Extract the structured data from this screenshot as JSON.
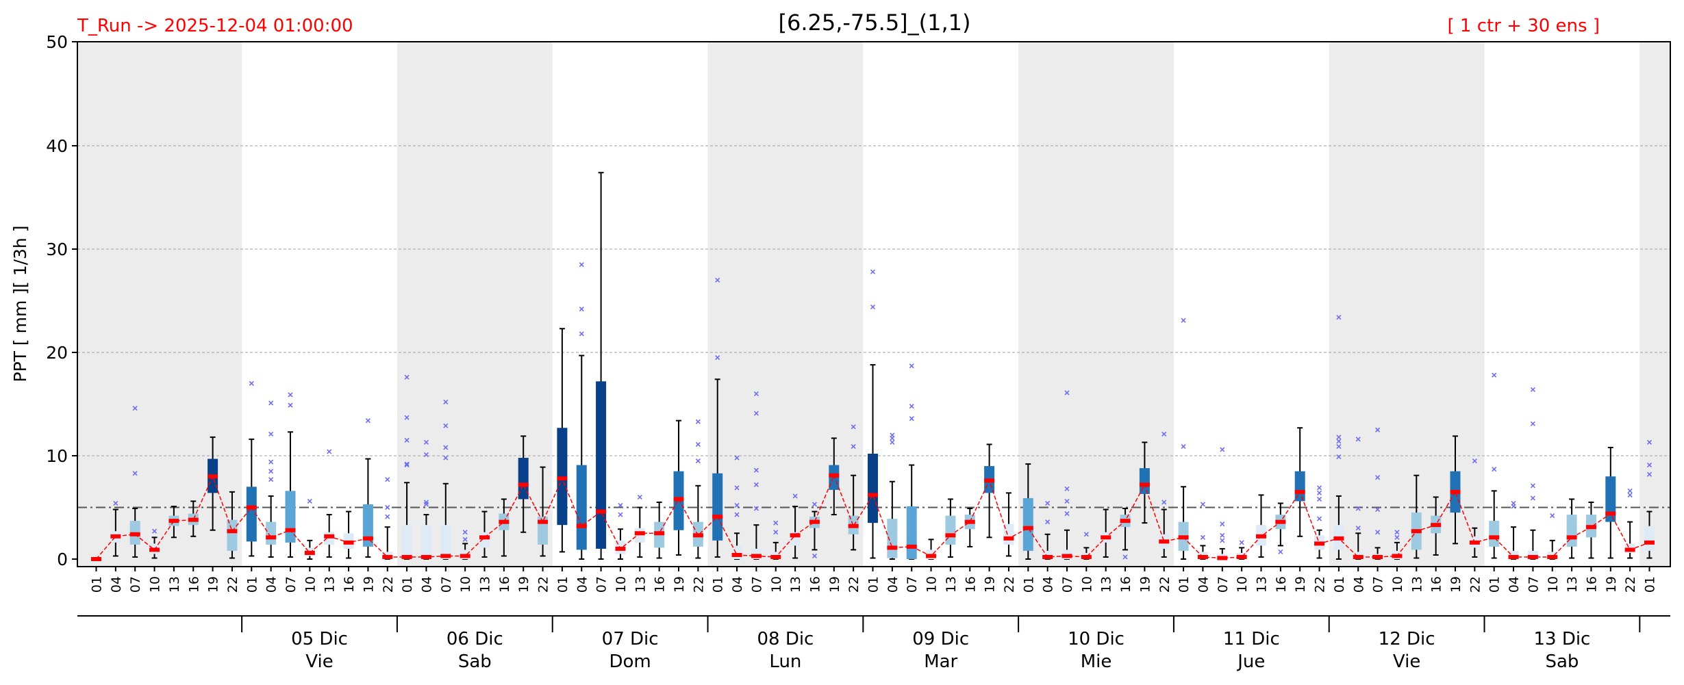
{
  "chart_data": {
    "type": "box",
    "title": "[6.25,-75.5]_(1,1)",
    "run_label": "T_Run -> 2025-12-04  01:00:00",
    "ensemble_label": "[ 1 ctr + 30 ens ]",
    "ylabel": "PPT  [ mm ][ 1/3h ]",
    "ylim": [
      0,
      50
    ],
    "yticks": [
      0,
      10,
      20,
      30,
      40,
      50
    ],
    "threshold": 5,
    "grid": true,
    "hours": [
      "01",
      "04",
      "07",
      "10",
      "13",
      "16",
      "19",
      "22"
    ],
    "day_groups": [
      {
        "date": "",
        "weekday": "",
        "shaded": true
      },
      {
        "date": "05 Dic",
        "weekday": "Vie",
        "shaded": false
      },
      {
        "date": "06 Dic",
        "weekday": "Sab",
        "shaded": true
      },
      {
        "date": "07 Dic",
        "weekday": "Dom",
        "shaded": false
      },
      {
        "date": "08 Dic",
        "weekday": "Lun",
        "shaded": true
      },
      {
        "date": "09 Dic",
        "weekday": "Mar",
        "shaded": false
      },
      {
        "date": "10 Dic",
        "weekday": "Mie",
        "shaded": true
      },
      {
        "date": "11 Dic",
        "weekday": "Jue",
        "shaded": false
      },
      {
        "date": "12 Dic",
        "weekday": "Vie",
        "shaded": true
      },
      {
        "date": "13 Dic",
        "weekday": "Sab",
        "shaded": false
      },
      {
        "date": "",
        "weekday": "",
        "shaded": true
      }
    ],
    "colors": {
      "shade": "#ececec",
      "median": "#ff0000",
      "median_line": "#ff0000",
      "whisker": "#000000",
      "outlier": "#6e6ef0",
      "threshold": "#555555",
      "grid": "#b0b0b0",
      "box_levels": [
        "#deebf7",
        "#9ecae1",
        "#5aa5d6",
        "#2171b5",
        "#08408a"
      ]
    },
    "boxes": [
      {
        "t": "01",
        "q1": 0,
        "med": 0,
        "q3": 0,
        "lo": 0,
        "hi": 0,
        "out": []
      },
      {
        "t": "04",
        "q1": 1.6,
        "med": 2.2,
        "q3": 2.7,
        "lo": 0.3,
        "hi": 4.8,
        "out": [
          5.4
        ]
      },
      {
        "t": "07",
        "q1": 1.4,
        "med": 2.4,
        "q3": 3.7,
        "lo": 0.2,
        "hi": 4.9,
        "out": [
          8.3,
          14.6
        ]
      },
      {
        "t": "10",
        "q1": 0.5,
        "med": 0.9,
        "q3": 1.5,
        "lo": 0.1,
        "hi": 2.1,
        "out": [
          2.7
        ]
      },
      {
        "t": "13",
        "q1": 3.2,
        "med": 3.7,
        "q3": 4.2,
        "lo": 2.1,
        "hi": 5.1,
        "out": []
      },
      {
        "t": "16",
        "q1": 3.3,
        "med": 3.8,
        "q3": 4.4,
        "lo": 2.2,
        "hi": 5.6,
        "out": []
      },
      {
        "t": "19",
        "q1": 6.4,
        "med": 8,
        "q3": 9.7,
        "lo": 2.8,
        "hi": 11.8,
        "out": []
      },
      {
        "t": "22",
        "q1": 0.8,
        "med": 2.7,
        "q3": 3.8,
        "lo": 0.1,
        "hi": 6.5,
        "out": []
      },
      {
        "t": "01",
        "q1": 1.7,
        "med": 5,
        "q3": 7,
        "lo": 0.3,
        "hi": 11.6,
        "out": [
          17
        ]
      },
      {
        "t": "04",
        "q1": 1.4,
        "med": 2.1,
        "q3": 3.6,
        "lo": 0.2,
        "hi": 6.1,
        "out": [
          7.7,
          8.5,
          9.4,
          12.1,
          15.1
        ]
      },
      {
        "t": "07",
        "q1": 1.6,
        "med": 2.8,
        "q3": 6.6,
        "lo": 0.2,
        "hi": 12.3,
        "out": [
          14.9,
          15.9
        ]
      },
      {
        "t": "10",
        "q1": 0.3,
        "med": 0.6,
        "q3": 1.1,
        "lo": 0,
        "hi": 1.8,
        "out": [
          5.6
        ]
      },
      {
        "t": "13",
        "q1": 1.4,
        "med": 2.2,
        "q3": 2.6,
        "lo": 0.2,
        "hi": 4.3,
        "out": [
          10.4
        ]
      },
      {
        "t": "16",
        "q1": 1,
        "med": 1.6,
        "q3": 2.5,
        "lo": 0.1,
        "hi": 4.6,
        "out": []
      },
      {
        "t": "19",
        "q1": 1.2,
        "med": 2,
        "q3": 5.3,
        "lo": 0.2,
        "hi": 9.7,
        "out": [
          13.4
        ]
      },
      {
        "t": "22",
        "q1": 0,
        "med": 0.2,
        "q3": 0.7,
        "lo": 0,
        "hi": 3.1,
        "out": [
          4.1,
          5,
          7.7
        ]
      },
      {
        "t": "01",
        "q1": 0,
        "med": 0.2,
        "q3": 3.3,
        "lo": 0,
        "hi": 7.4,
        "out": [
          9.1,
          9.2,
          11.5,
          13.7,
          17.6
        ]
      },
      {
        "t": "04",
        "q1": 0,
        "med": 0.2,
        "q3": 3.3,
        "lo": 0,
        "hi": 4.3,
        "out": [
          5.3,
          5.5,
          10.1,
          11.3
        ]
      },
      {
        "t": "07",
        "q1": 0,
        "med": 0.3,
        "q3": 3.3,
        "lo": 0,
        "hi": 7.3,
        "out": [
          9.8,
          10.8,
          12.9,
          15.2
        ]
      },
      {
        "t": "10",
        "q1": 0,
        "med": 0.3,
        "q3": 0.9,
        "lo": 0,
        "hi": 1.5,
        "out": [
          1.9,
          2.6
        ]
      },
      {
        "t": "13",
        "q1": 1.1,
        "med": 2.1,
        "q3": 2.6,
        "lo": 0.2,
        "hi": 4.6,
        "out": []
      },
      {
        "t": "16",
        "q1": 2.8,
        "med": 3.6,
        "q3": 4.4,
        "lo": 0.3,
        "hi": 5.8,
        "out": []
      },
      {
        "t": "19",
        "q1": 5.8,
        "med": 7.2,
        "q3": 9.8,
        "lo": 2.6,
        "hi": 11.9,
        "out": []
      },
      {
        "t": "22",
        "q1": 1.4,
        "med": 3.6,
        "q3": 4.1,
        "lo": 0.3,
        "hi": 8.9,
        "out": []
      },
      {
        "t": "01",
        "q1": 3.3,
        "med": 7.8,
        "q3": 12.7,
        "lo": 0.7,
        "hi": 22.3,
        "out": []
      },
      {
        "t": "04",
        "q1": 0.9,
        "med": 3.2,
        "q3": 9.1,
        "lo": 0,
        "hi": 19.7,
        "out": [
          21.8,
          24.2,
          28.5
        ]
      },
      {
        "t": "07",
        "q1": 1,
        "med": 4.6,
        "q3": 17.2,
        "lo": 0,
        "hi": 37.4,
        "out": []
      },
      {
        "t": "10",
        "q1": 0.5,
        "med": 1,
        "q3": 1.8,
        "lo": 0,
        "hi": 2.9,
        "out": [
          4.3,
          5.2
        ]
      },
      {
        "t": "13",
        "q1": 1.6,
        "med": 2.5,
        "q3": 3,
        "lo": 0.2,
        "hi": 5,
        "out": [
          6
        ]
      },
      {
        "t": "16",
        "q1": 1.1,
        "med": 2.5,
        "q3": 3.6,
        "lo": 0.1,
        "hi": 5.5,
        "out": []
      },
      {
        "t": "19",
        "q1": 2.8,
        "med": 5.8,
        "q3": 8.5,
        "lo": 0.4,
        "hi": 13.4,
        "out": []
      },
      {
        "t": "22",
        "q1": 1.2,
        "med": 2.3,
        "q3": 3.6,
        "lo": 0.1,
        "hi": 7.1,
        "out": [
          9.5,
          11.1,
          13.3
        ]
      },
      {
        "t": "01",
        "q1": 1.8,
        "med": 4.1,
        "q3": 8.3,
        "lo": 0.2,
        "hi": 17.4,
        "out": [
          19.5,
          27
        ]
      },
      {
        "t": "04",
        "q1": 0,
        "med": 0.4,
        "q3": 1.3,
        "lo": 0,
        "hi": 2.5,
        "out": [
          4.3,
          5.2,
          6.9,
          9.8
        ]
      },
      {
        "t": "07",
        "q1": 0,
        "med": 0.3,
        "q3": 1,
        "lo": 0,
        "hi": 3.3,
        "out": [
          4.9,
          7.2,
          8.6,
          14.1,
          16
        ]
      },
      {
        "t": "10",
        "q1": 0,
        "med": 0.2,
        "q3": 0.7,
        "lo": 0,
        "hi": 1.6,
        "out": [
          2.6,
          3.5
        ]
      },
      {
        "t": "13",
        "q1": 1.3,
        "med": 2.3,
        "q3": 2.6,
        "lo": 0.1,
        "hi": 5.1,
        "out": [
          6.1
        ]
      },
      {
        "t": "16",
        "q1": 3,
        "med": 3.6,
        "q3": 4.1,
        "lo": 0.9,
        "hi": 4.6,
        "out": [
          0.3,
          5.3
        ]
      },
      {
        "t": "19",
        "q1": 6.7,
        "med": 8.1,
        "q3": 9.1,
        "lo": 4.3,
        "hi": 11.7,
        "out": []
      },
      {
        "t": "22",
        "q1": 2.4,
        "med": 3.2,
        "q3": 4.2,
        "lo": 0.9,
        "hi": 8.1,
        "out": [
          10.9,
          12.8
        ]
      },
      {
        "t": "01",
        "q1": 3.5,
        "med": 6.2,
        "q3": 10.2,
        "lo": 0.1,
        "hi": 18.8,
        "out": [
          24.4,
          27.8
        ]
      },
      {
        "t": "04",
        "q1": 0.1,
        "med": 1.1,
        "q3": 3.9,
        "lo": 0,
        "hi": 7.5,
        "out": [
          11.3,
          11.7,
          12
        ]
      },
      {
        "t": "07",
        "q1": 0,
        "med": 1.2,
        "q3": 5.1,
        "lo": 0,
        "hi": 9.1,
        "out": [
          13.6,
          14.8,
          18.7
        ]
      },
      {
        "t": "10",
        "q1": 0,
        "med": 0.3,
        "q3": 0.9,
        "lo": 0,
        "hi": 1.9,
        "out": []
      },
      {
        "t": "13",
        "q1": 1.4,
        "med": 2.3,
        "q3": 4.2,
        "lo": 0.2,
        "hi": 5.8,
        "out": []
      },
      {
        "t": "16",
        "q1": 2.9,
        "med": 3.6,
        "q3": 4.3,
        "lo": 1.2,
        "hi": 4.9,
        "out": []
      },
      {
        "t": "19",
        "q1": 6.4,
        "med": 7.6,
        "q3": 9,
        "lo": 2.1,
        "hi": 11.1,
        "out": []
      },
      {
        "t": "22",
        "q1": 1.4,
        "med": 2,
        "q3": 3.4,
        "lo": 0.3,
        "hi": 6.4,
        "out": []
      },
      {
        "t": "01",
        "q1": 0.8,
        "med": 3,
        "q3": 5.9,
        "lo": 0,
        "hi": 9.2,
        "out": []
      },
      {
        "t": "04",
        "q1": 0,
        "med": 0.2,
        "q3": 0.8,
        "lo": 0,
        "hi": 2.4,
        "out": [
          3.6,
          5.4
        ]
      },
      {
        "t": "07",
        "q1": 0,
        "med": 0.3,
        "q3": 0.9,
        "lo": 0,
        "hi": 2.8,
        "out": [
          4.4,
          5.6,
          6.8,
          16.1
        ]
      },
      {
        "t": "10",
        "q1": 0,
        "med": 0.2,
        "q3": 0.6,
        "lo": 0,
        "hi": 1.1,
        "out": [
          2.4
        ]
      },
      {
        "t": "13",
        "q1": 1.6,
        "med": 2.1,
        "q3": 2.6,
        "lo": 0.2,
        "hi": 4.8,
        "out": []
      },
      {
        "t": "16",
        "q1": 3.1,
        "med": 3.7,
        "q3": 4.3,
        "lo": 0.9,
        "hi": 4.9,
        "out": [
          0.2
        ]
      },
      {
        "t": "19",
        "q1": 6.3,
        "med": 7.2,
        "q3": 8.8,
        "lo": 3.5,
        "hi": 11.3,
        "out": []
      },
      {
        "t": "22",
        "q1": 1,
        "med": 1.7,
        "q3": 2.4,
        "lo": 0.2,
        "hi": 4.8,
        "out": [
          5.5,
          12.1
        ]
      },
      {
        "t": "01",
        "q1": 0.8,
        "med": 2.1,
        "q3": 3.6,
        "lo": 0,
        "hi": 7,
        "out": [
          10.9,
          23.1
        ]
      },
      {
        "t": "04",
        "q1": 0,
        "med": 0.2,
        "q3": 0.7,
        "lo": 0,
        "hi": 1.3,
        "out": [
          2.1,
          5.3
        ]
      },
      {
        "t": "07",
        "q1": 0,
        "med": 0.1,
        "q3": 0.5,
        "lo": 0,
        "hi": 1,
        "out": [
          1.8,
          2.3,
          3.4,
          10.6
        ]
      },
      {
        "t": "10",
        "q1": 0,
        "med": 0.2,
        "q3": 0.6,
        "lo": 0,
        "hi": 1.1,
        "out": [
          1.6
        ]
      },
      {
        "t": "13",
        "q1": 1.3,
        "med": 2.2,
        "q3": 3.3,
        "lo": 0.2,
        "hi": 6.2,
        "out": []
      },
      {
        "t": "16",
        "q1": 2.9,
        "med": 3.6,
        "q3": 4.3,
        "lo": 1.3,
        "hi": 5.4,
        "out": [
          0.7
        ]
      },
      {
        "t": "19",
        "q1": 5.6,
        "med": 6.5,
        "q3": 8.5,
        "lo": 2.2,
        "hi": 12.7,
        "out": []
      },
      {
        "t": "22",
        "q1": 0.9,
        "med": 1.5,
        "q3": 2.3,
        "lo": 0.1,
        "hi": 2.8,
        "out": [
          3.9,
          5.8,
          6.4,
          6.9
        ]
      },
      {
        "t": "01",
        "q1": 0.9,
        "med": 2,
        "q3": 3.3,
        "lo": 0,
        "hi": 6.1,
        "out": [
          9.9,
          10.9,
          11.4,
          11.8,
          23.4
        ]
      },
      {
        "t": "04",
        "q1": 0,
        "med": 0.2,
        "q3": 0.7,
        "lo": 0,
        "hi": 2.5,
        "out": [
          3,
          4.9,
          11.6
        ]
      },
      {
        "t": "07",
        "q1": 0,
        "med": 0.2,
        "q3": 0.5,
        "lo": 0,
        "hi": 1.1,
        "out": [
          2.6,
          4.8,
          7.9,
          12.5
        ]
      },
      {
        "t": "10",
        "q1": 0,
        "med": 0.3,
        "q3": 0.8,
        "lo": 0,
        "hi": 1.6,
        "out": [
          2.1,
          2.6
        ]
      },
      {
        "t": "13",
        "q1": 0.9,
        "med": 2.7,
        "q3": 4.5,
        "lo": 0.1,
        "hi": 8.1,
        "out": []
      },
      {
        "t": "16",
        "q1": 2.5,
        "med": 3.3,
        "q3": 4.2,
        "lo": 0.4,
        "hi": 6,
        "out": []
      },
      {
        "t": "19",
        "q1": 4.5,
        "med": 6.5,
        "q3": 8.5,
        "lo": 1.5,
        "hi": 11.9,
        "out": []
      },
      {
        "t": "22",
        "q1": 1.1,
        "med": 1.6,
        "q3": 2.2,
        "lo": 0.2,
        "hi": 3,
        "out": [
          9.5
        ]
      },
      {
        "t": "01",
        "q1": 1.2,
        "med": 2.1,
        "q3": 3.7,
        "lo": 0.1,
        "hi": 6.6,
        "out": [
          8.7,
          17.8
        ]
      },
      {
        "t": "04",
        "q1": 0,
        "med": 0.2,
        "q3": 0.8,
        "lo": 0,
        "hi": 3.1,
        "out": [
          5.1,
          5.4
        ]
      },
      {
        "t": "07",
        "q1": 0,
        "med": 0.2,
        "q3": 0.8,
        "lo": 0,
        "hi": 2.8,
        "out": [
          5.9,
          7.1,
          13.1,
          16.4
        ]
      },
      {
        "t": "10",
        "q1": 0,
        "med": 0.2,
        "q3": 0.7,
        "lo": 0,
        "hi": 1.8,
        "out": [
          4.2
        ]
      },
      {
        "t": "13",
        "q1": 1.2,
        "med": 2.1,
        "q3": 4.3,
        "lo": 0.1,
        "hi": 5.8,
        "out": []
      },
      {
        "t": "16",
        "q1": 2.1,
        "med": 3.1,
        "q3": 4.3,
        "lo": 0.1,
        "hi": 5.5,
        "out": []
      },
      {
        "t": "19",
        "q1": 3.6,
        "med": 4.4,
        "q3": 8,
        "lo": 0.1,
        "hi": 10.8,
        "out": []
      },
      {
        "t": "22",
        "q1": 0.6,
        "med": 0.9,
        "q3": 1.5,
        "lo": 0.1,
        "hi": 3.6,
        "out": [
          6.2,
          6.6
        ]
      },
      {
        "t": "01",
        "q1": 0.8,
        "med": 1.6,
        "q3": 3.2,
        "lo": 0.1,
        "hi": 4.6,
        "out": [
          8.2,
          9.1,
          11.3
        ]
      }
    ]
  }
}
